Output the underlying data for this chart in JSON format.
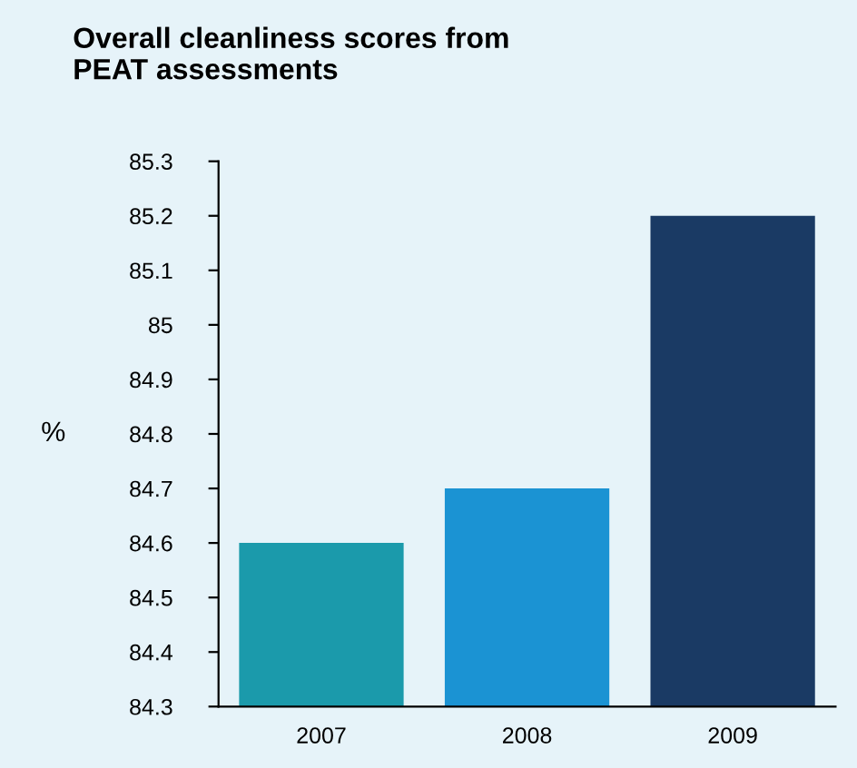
{
  "chart_data": {
    "type": "bar",
    "title": "Overall cleanliness scores from\nPEAT assessments",
    "ylabel": "%",
    "categories": [
      "2007",
      "2008",
      "2009"
    ],
    "values": [
      84.6,
      84.7,
      85.2
    ],
    "colors": [
      "#1b9aab",
      "#1b93d3",
      "#1a3a64"
    ],
    "ylim": [
      84.3,
      85.3
    ],
    "yticks": [
      84.3,
      84.4,
      84.5,
      84.6,
      84.7,
      84.8,
      84.9,
      85,
      85.1,
      85.2,
      85.3
    ],
    "grid": false,
    "legend": false
  }
}
